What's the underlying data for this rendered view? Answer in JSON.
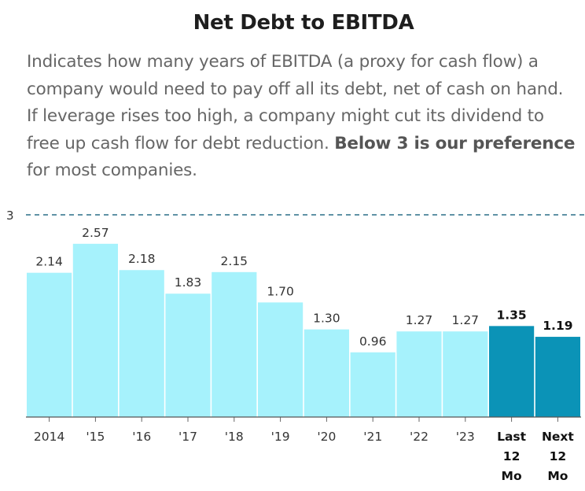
{
  "title": "Net Debt to EBITDA",
  "description": {
    "text": "Indicates how many years of EBITDA (a proxy for cash flow) a company would need to pay off all its debt, net of cash on hand. If leverage rises too high, a company might cut its dividend to free up cash flow for debt reduction.",
    "bold": "Below 3 is our preference",
    "end": "for most companies."
  },
  "colors": {
    "bar_historical": "#a6f2fc",
    "bar_forecast": "#0b93b7",
    "threshold_line": "#2b6f87",
    "text": "#333333"
  },
  "chart_data": {
    "type": "bar",
    "categories": [
      "2014",
      "'15",
      "'16",
      "'17",
      "'18",
      "'19",
      "'20",
      "'21",
      "'22",
      "'23",
      "Last 12 Mo",
      "Next 12 Mo"
    ],
    "category_lines": [
      [
        "2014"
      ],
      [
        "'15"
      ],
      [
        "'16"
      ],
      [
        "'17"
      ],
      [
        "'18"
      ],
      [
        "'19"
      ],
      [
        "'20"
      ],
      [
        "'21"
      ],
      [
        "'22"
      ],
      [
        "'23"
      ],
      [
        "Last",
        "12",
        "Mo"
      ],
      [
        "Next",
        "12",
        "Mo"
      ]
    ],
    "values": [
      2.14,
      2.57,
      2.18,
      1.83,
      2.15,
      1.7,
      1.3,
      0.96,
      1.27,
      1.27,
      1.35,
      1.19
    ],
    "value_labels": [
      "2.14",
      "2.57",
      "2.18",
      "1.83",
      "2.15",
      "1.70",
      "1.30",
      "0.96",
      "1.27",
      "1.27",
      "1.35",
      "1.19"
    ],
    "highlighted": [
      false,
      false,
      false,
      false,
      false,
      false,
      false,
      false,
      false,
      false,
      true,
      true
    ],
    "threshold": 3,
    "threshold_label": "3",
    "ylim": [
      0,
      3
    ],
    "grid": false,
    "title": "Net Debt to EBITDA",
    "xlabel": "",
    "ylabel": ""
  }
}
